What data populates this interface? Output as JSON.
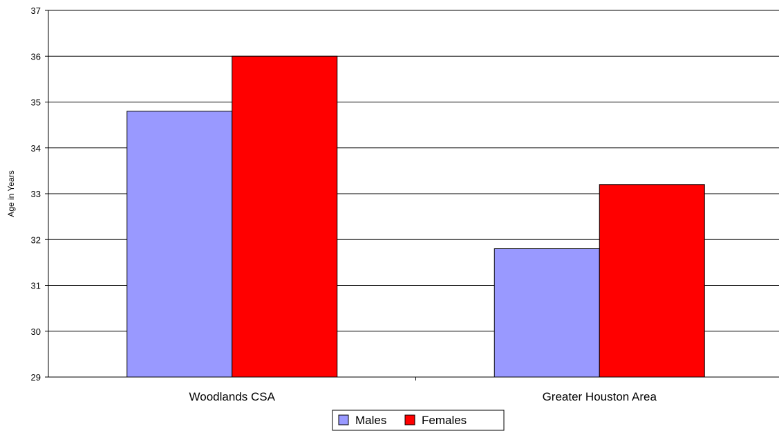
{
  "chart_data": {
    "type": "bar",
    "title": "",
    "xlabel": "",
    "ylabel": "Age in Years",
    "categories": [
      "Woodlands CSA",
      "Greater Houston Area"
    ],
    "series": [
      {
        "name": "Males",
        "values": [
          34.8,
          31.8
        ],
        "color": "#9999ff"
      },
      {
        "name": "Females",
        "values": [
          36.0,
          33.2
        ],
        "color": "#ff0000"
      }
    ],
    "ylim": [
      29,
      37
    ],
    "yticks": [
      29,
      30,
      31,
      32,
      33,
      34,
      35,
      36,
      37
    ],
    "grid": true,
    "legend": "bottom-center"
  }
}
